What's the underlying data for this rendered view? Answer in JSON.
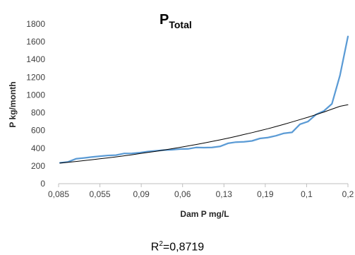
{
  "chart_data": {
    "type": "line",
    "title": "P",
    "title_subscript": "Total",
    "xlabel": "Dam P mg/L",
    "ylabel": "P kg/month",
    "ylim": [
      0,
      1800
    ],
    "yticks": [
      0,
      200,
      400,
      600,
      800,
      1000,
      1200,
      1400,
      1600,
      1800
    ],
    "x_tick_labels": [
      "0,085",
      "0,055",
      "0,09",
      "0,06",
      "0,13",
      "0,19",
      "0,1",
      "0,2"
    ],
    "grid": false,
    "legend": "none",
    "series": [
      {
        "color": "#5B9BD5",
        "values": [
          235,
          245,
          280,
          290,
          300,
          310,
          318,
          322,
          340,
          342,
          350,
          362,
          370,
          378,
          382,
          390,
          392,
          408,
          406,
          408,
          420,
          455,
          468,
          472,
          482,
          510,
          520,
          540,
          568,
          578,
          670,
          700,
          780,
          820,
          900,
          1220,
          1660
        ]
      },
      {
        "color": "#000000",
        "type": "trendline-exponential",
        "values": [
          232,
          241,
          250,
          260,
          270,
          280,
          291,
          302,
          314,
          326,
          339,
          352,
          365,
          379,
          394,
          409,
          425,
          441,
          458,
          476,
          494,
          513,
          533,
          554,
          575,
          597,
          620,
          644,
          669,
          695,
          722,
          749,
          778,
          808,
          840,
          872,
          890
        ]
      }
    ],
    "annotation": {
      "prefix": "R",
      "sup": "2",
      "value": "=0,8719"
    }
  }
}
